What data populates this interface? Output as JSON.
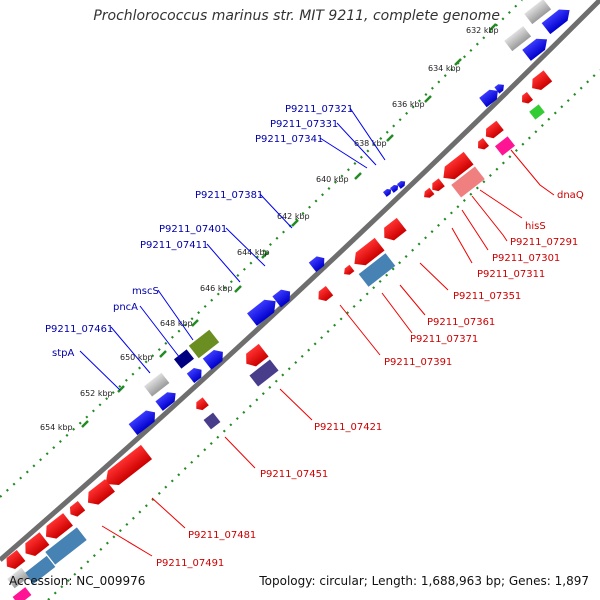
{
  "title": "Prochlorococcus marinus str. MIT 9211, complete genome",
  "footer": {
    "accession": "Accession: NC_009976",
    "summary": "Topology: circular; Length: 1,688,963 bp; Genes: 1,897"
  },
  "colors": {
    "backbone": "#7a7a7a",
    "tick_marks": "#228b22",
    "forward_label": "#0000aa",
    "reverse_label": "#cc0000",
    "gene_blue": "#0000ee",
    "gene_red": "#ee0000",
    "gene_pink": "#f08080",
    "gene_magenta": "#ff1493",
    "gene_green": "#22bb22",
    "gene_olive": "#6b8e23",
    "gene_gray": "#b8b8b8",
    "gene_steelblue": "#4682b4",
    "gene_navy": "#000080",
    "gene_purple": "#483d8b"
  },
  "kbp_ticks": [
    "632 kbp",
    "634 kbp",
    "636 kbp",
    "638 kbp",
    "640 kbp",
    "642 kbp",
    "644 kbp",
    "646 kbp",
    "648 kbp",
    "650 kbp",
    "652 kbp",
    "654 kbp"
  ],
  "forward_labels": [
    "P9211_07321",
    "P9211_07331",
    "P9211_07341",
    "P9211_07381",
    "P9211_07401",
    "P9211_07411",
    "mscS",
    "pncA",
    "P9211_07461",
    "stpA"
  ],
  "reverse_labels": [
    "dnaQ",
    "hisS",
    "P9211_07291",
    "P9211_07301",
    "P9211_07311",
    "P9211_07351",
    "P9211_07361",
    "P9211_07371",
    "P9211_07391",
    "P9211_07421",
    "P9211_07451",
    "P9211_07481",
    "P9211_07491"
  ]
}
